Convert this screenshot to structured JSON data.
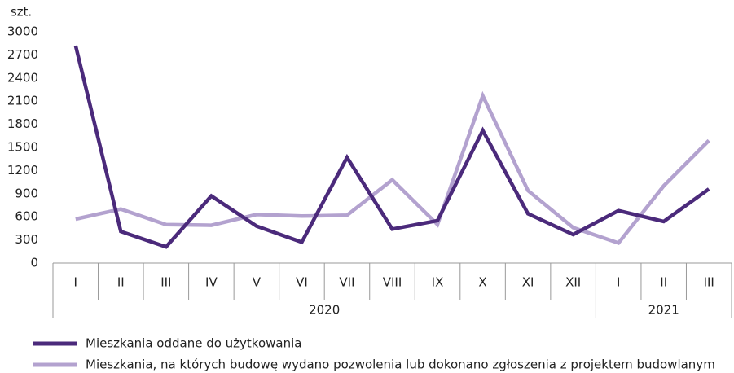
{
  "chart_data": {
    "type": "line",
    "y_label": "szt.",
    "categories": [
      "I",
      "II",
      "III",
      "IV",
      "V",
      "VI",
      "VII",
      "VIII",
      "IX",
      "X",
      "XI",
      "XII",
      "I",
      "II",
      "III"
    ],
    "x_groups": [
      {
        "label": "2020",
        "count": 12
      },
      {
        "label": "2021",
        "count": 3
      }
    ],
    "series": [
      {
        "name": "Mieszkania oddane do użytkowania",
        "color": "#4b2a7b",
        "values": [
          2820,
          410,
          210,
          870,
          480,
          270,
          1370,
          440,
          550,
          1720,
          640,
          370,
          680,
          540,
          960
        ]
      },
      {
        "name": "Mieszkania, na których budowę wydano pozwolenia lub dokonano zgłoszenia z projektem budowlanym",
        "color": "#b3a2cf",
        "values": [
          570,
          700,
          500,
          490,
          630,
          610,
          620,
          1080,
          500,
          2170,
          940,
          460,
          260,
          1000,
          1590
        ]
      }
    ],
    "ylim": [
      0,
      3000
    ],
    "yticks": [
      0,
      300,
      600,
      900,
      1200,
      1500,
      1800,
      2100,
      2400,
      2700,
      3000
    ],
    "grid": false,
    "legend": "bottom"
  }
}
